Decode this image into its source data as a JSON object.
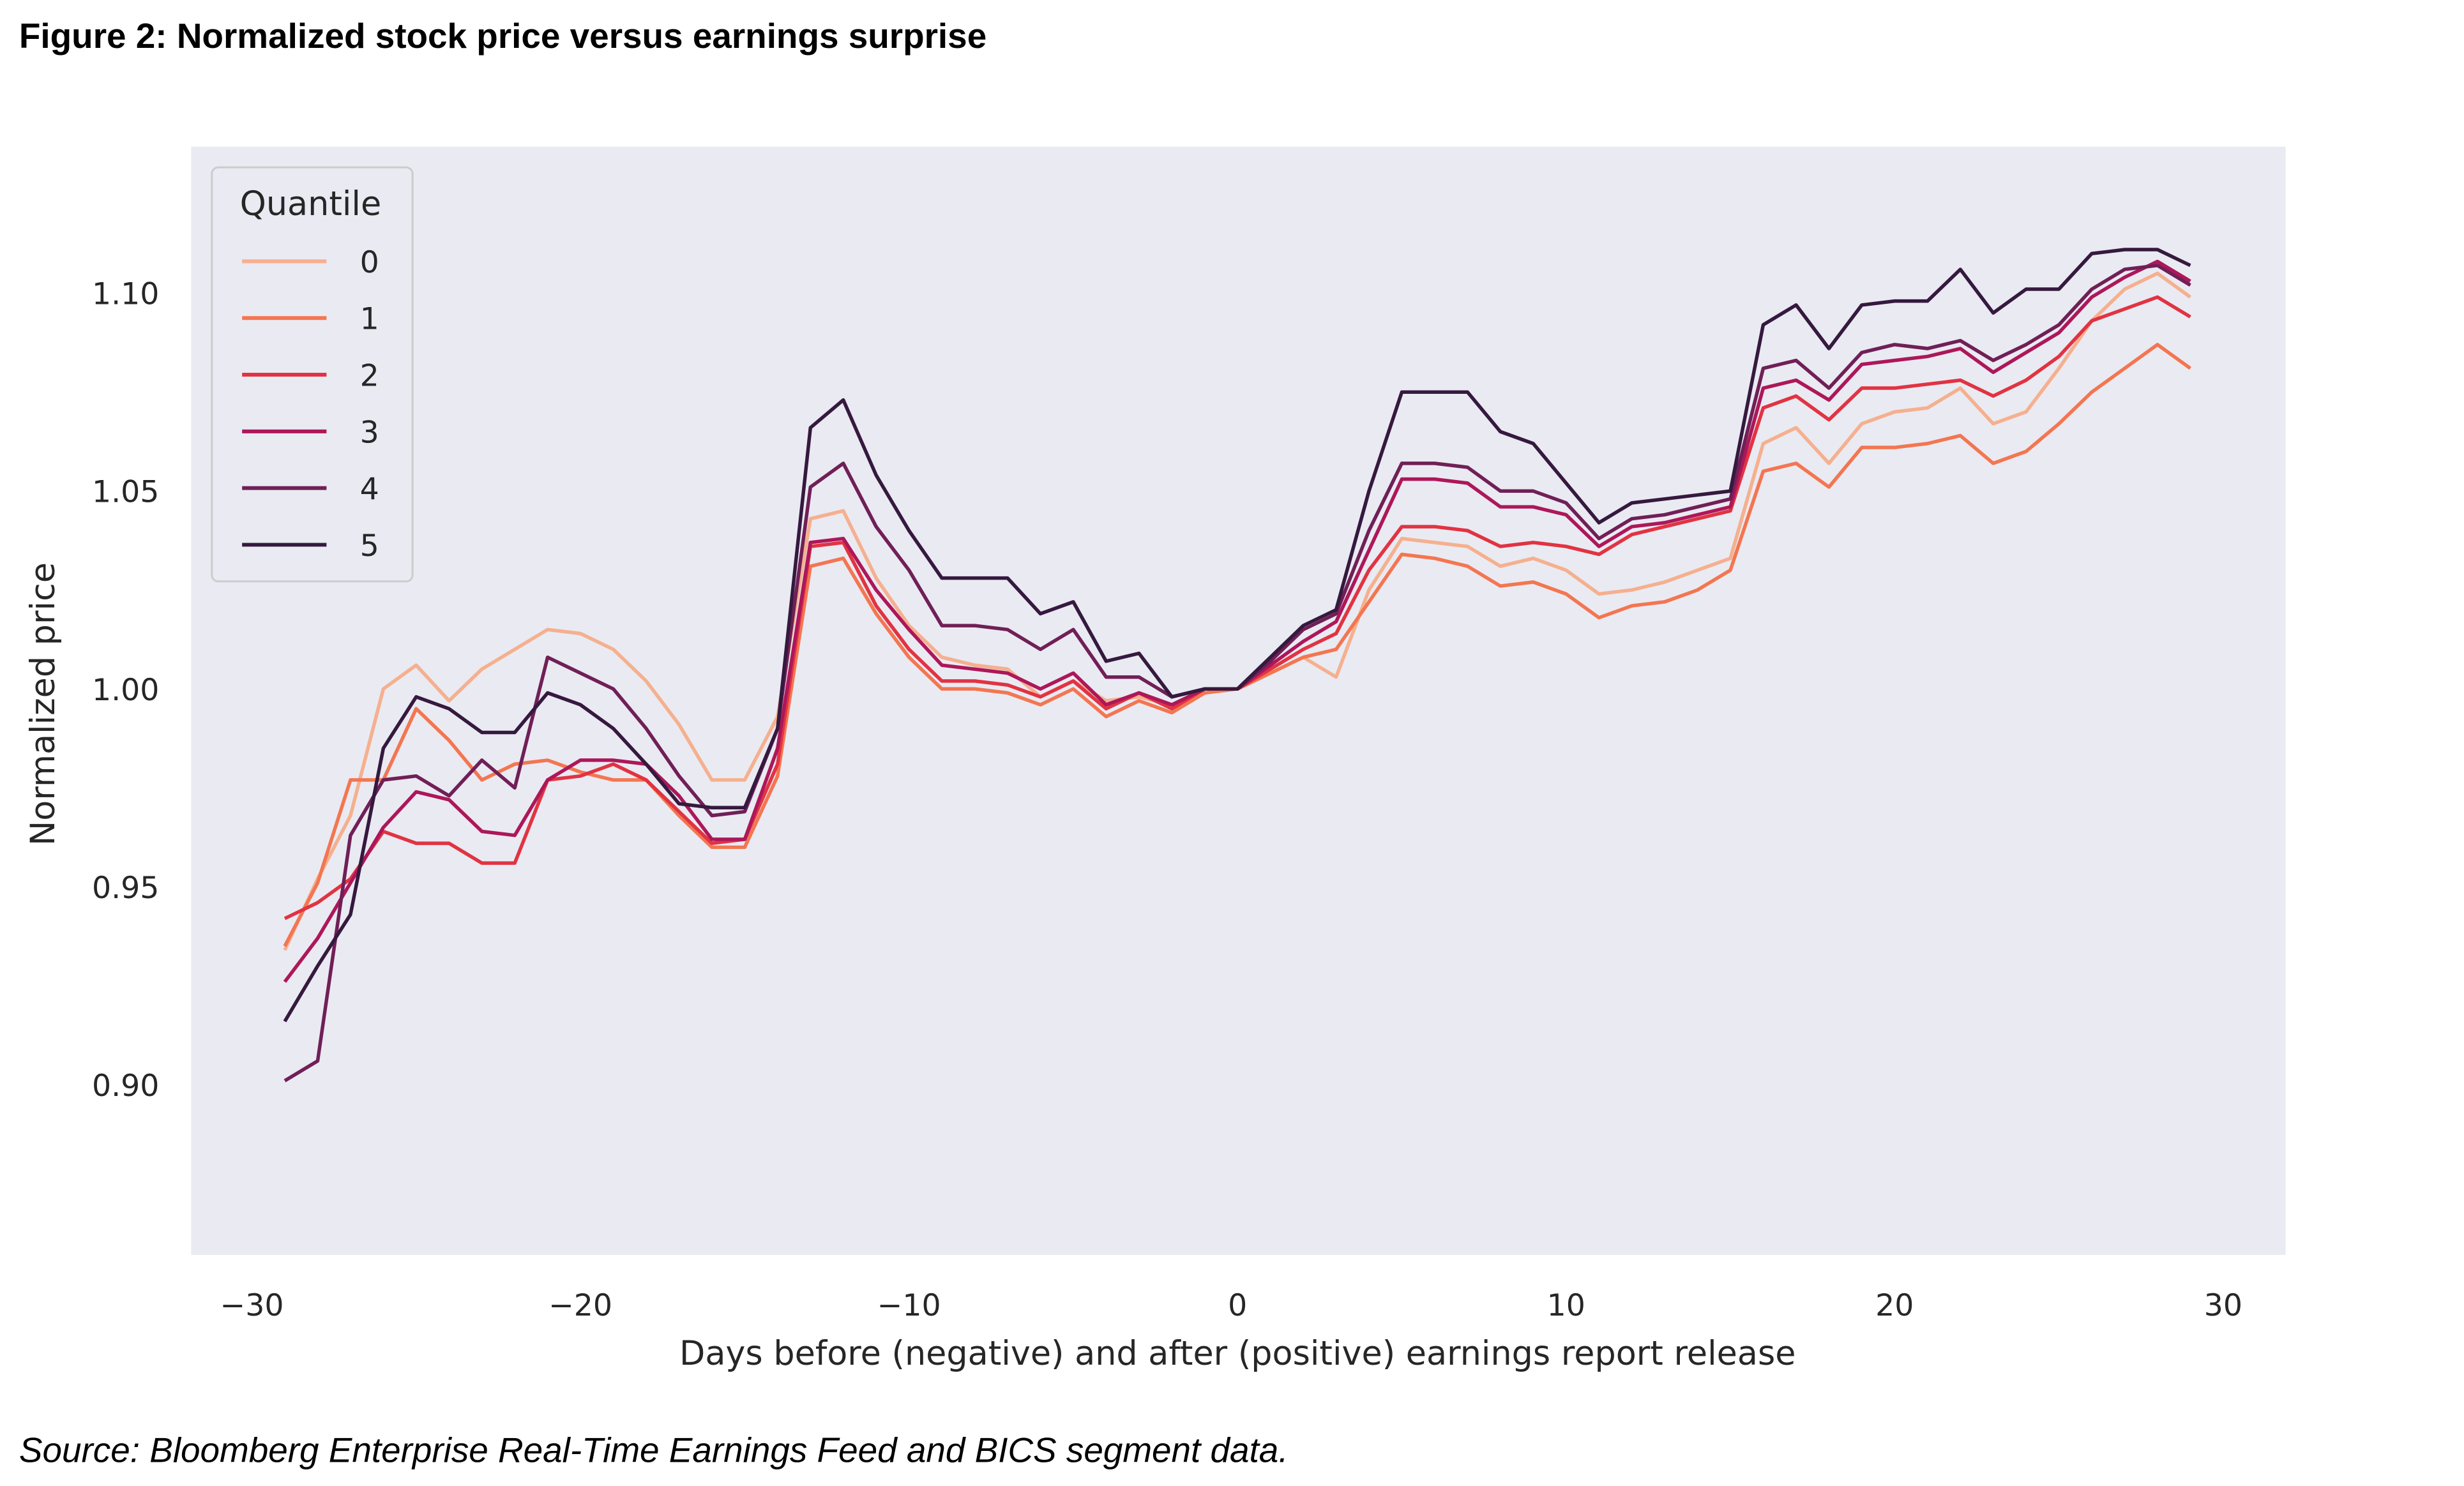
{
  "chart_data": {
    "type": "line",
    "title": "Figure 2: Normalized stock price versus earnings surprise",
    "source": "Source: Bloomberg Enterprise Real-Time Earnings Feed and BICS segment data.",
    "xlabel": "Days before (negative) and after (positive) earnings report release",
    "ylabel": "Normalized price",
    "legend_title": "Quantile",
    "legend_position": "upper left",
    "grid": false,
    "background": "#eaeaf2",
    "xlim": [
      -31.85,
      31.9
    ],
    "ylim": [
      0.857,
      1.137
    ],
    "xticks": [
      {
        "value": -30,
        "label": "−30"
      },
      {
        "value": -20,
        "label": "−20"
      },
      {
        "value": -10,
        "label": "−10"
      },
      0,
      10,
      20,
      30
    ],
    "yticks": [
      {
        "value": 0.9,
        "label": "0.90"
      },
      0.95,
      {
        "value": 1.0,
        "label": "1.00"
      },
      1.05,
      {
        "value": 1.1,
        "label": "1.10"
      }
    ],
    "x": [
      -29,
      -28,
      -27,
      -26,
      -25,
      -24,
      -23,
      -22,
      -21,
      -20,
      -19,
      -18,
      -17,
      -16,
      -15,
      -14,
      -13,
      -12,
      -11,
      -10,
      -9,
      -8,
      -7,
      -6,
      -5,
      -4,
      -3,
      -2,
      -1,
      0,
      1,
      2,
      3,
      4,
      5,
      6,
      7,
      8,
      9,
      10,
      11,
      12,
      13,
      14,
      15,
      16,
      17,
      18,
      19,
      20,
      21,
      22,
      23,
      24,
      25,
      26,
      27,
      28,
      29
    ],
    "series": [
      {
        "name": "0",
        "color": "#f5b08f",
        "values": [
          0.934,
          0.952,
          0.968,
          1.0,
          1.006,
          0.997,
          1.005,
          1.01,
          1.015,
          1.014,
          1.01,
          1.002,
          0.991,
          0.977,
          0.977,
          0.993,
          1.043,
          1.045,
          1.028,
          1.016,
          1.008,
          1.006,
          1.005,
          0.998,
          1.002,
          0.997,
          0.998,
          0.996,
          1.0,
          1.0,
          1.004,
          1.008,
          1.003,
          1.025,
          1.038,
          1.037,
          1.036,
          1.031,
          1.033,
          1.03,
          1.024,
          1.025,
          1.027,
          1.03,
          1.033,
          1.062,
          1.066,
          1.057,
          1.067,
          1.07,
          1.071,
          1.076,
          1.067,
          1.07,
          1.081,
          1.093,
          1.101,
          1.105,
          1.099
        ]
      },
      {
        "name": "1",
        "color": "#f37651",
        "values": [
          0.935,
          0.951,
          0.977,
          0.977,
          0.995,
          0.987,
          0.977,
          0.981,
          0.982,
          0.979,
          0.977,
          0.977,
          0.968,
          0.96,
          0.96,
          0.978,
          1.031,
          1.033,
          1.019,
          1.008,
          1.0,
          1.0,
          0.999,
          0.996,
          1.0,
          0.993,
          0.997,
          0.994,
          0.999,
          1.0,
          1.004,
          1.008,
          1.01,
          1.022,
          1.034,
          1.033,
          1.031,
          1.026,
          1.027,
          1.024,
          1.018,
          1.021,
          1.022,
          1.025,
          1.03,
          1.055,
          1.057,
          1.051,
          1.061,
          1.061,
          1.062,
          1.064,
          1.057,
          1.06,
          1.067,
          1.075,
          1.081,
          1.087,
          1.081
        ]
      },
      {
        "name": "2",
        "color": "#e13342",
        "values": [
          0.942,
          0.946,
          0.952,
          0.964,
          0.961,
          0.961,
          0.956,
          0.956,
          0.977,
          0.978,
          0.981,
          0.977,
          0.969,
          0.961,
          0.962,
          0.981,
          1.036,
          1.037,
          1.021,
          1.01,
          1.002,
          1.002,
          1.001,
          0.998,
          1.002,
          0.995,
          0.999,
          0.995,
          1.0,
          1.0,
          1.005,
          1.01,
          1.014,
          1.03,
          1.041,
          1.041,
          1.04,
          1.036,
          1.037,
          1.036,
          1.034,
          1.039,
          1.041,
          1.043,
          1.045,
          1.071,
          1.074,
          1.068,
          1.076,
          1.076,
          1.077,
          1.078,
          1.074,
          1.078,
          1.084,
          1.093,
          1.096,
          1.099,
          1.094
        ]
      },
      {
        "name": "3",
        "color": "#ad1759",
        "values": [
          0.926,
          0.937,
          0.951,
          0.965,
          0.974,
          0.972,
          0.964,
          0.963,
          0.977,
          0.982,
          0.982,
          0.981,
          0.973,
          0.962,
          0.962,
          0.985,
          1.037,
          1.038,
          1.025,
          1.015,
          1.006,
          1.005,
          1.004,
          1.0,
          1.004,
          0.996,
          0.999,
          0.996,
          1.0,
          1.0,
          1.006,
          1.012,
          1.017,
          1.035,
          1.053,
          1.053,
          1.052,
          1.046,
          1.046,
          1.044,
          1.036,
          1.041,
          1.042,
          1.044,
          1.046,
          1.076,
          1.078,
          1.073,
          1.082,
          1.083,
          1.084,
          1.086,
          1.08,
          1.085,
          1.09,
          1.099,
          1.104,
          1.108,
          1.103
        ]
      },
      {
        "name": "4",
        "color": "#701f57",
        "values": [
          0.901,
          0.906,
          0.963,
          0.977,
          0.978,
          0.973,
          0.982,
          0.975,
          1.008,
          1.004,
          1.0,
          0.99,
          0.978,
          0.968,
          0.969,
          0.99,
          1.051,
          1.057,
          1.041,
          1.03,
          1.016,
          1.016,
          1.015,
          1.01,
          1.015,
          1.003,
          1.003,
          0.998,
          1.0,
          1.0,
          1.007,
          1.015,
          1.019,
          1.04,
          1.057,
          1.057,
          1.056,
          1.05,
          1.05,
          1.047,
          1.038,
          1.043,
          1.044,
          1.046,
          1.048,
          1.081,
          1.083,
          1.076,
          1.085,
          1.087,
          1.086,
          1.088,
          1.083,
          1.087,
          1.092,
          1.101,
          1.106,
          1.107,
          1.102
        ]
      },
      {
        "name": "5",
        "color": "#35193e",
        "values": [
          0.916,
          0.93,
          0.943,
          0.985,
          0.998,
          0.995,
          0.989,
          0.989,
          0.999,
          0.996,
          0.99,
          0.981,
          0.971,
          0.97,
          0.97,
          0.99,
          1.066,
          1.073,
          1.054,
          1.04,
          1.028,
          1.028,
          1.028,
          1.019,
          1.022,
          1.007,
          1.009,
          0.998,
          1.0,
          1.0,
          1.008,
          1.016,
          1.02,
          1.05,
          1.075,
          1.075,
          1.075,
          1.065,
          1.062,
          1.052,
          1.042,
          1.047,
          1.048,
          1.049,
          1.05,
          1.092,
          1.097,
          1.086,
          1.097,
          1.098,
          1.098,
          1.106,
          1.095,
          1.101,
          1.101,
          1.11,
          1.111,
          1.111,
          1.107
        ]
      }
    ]
  }
}
